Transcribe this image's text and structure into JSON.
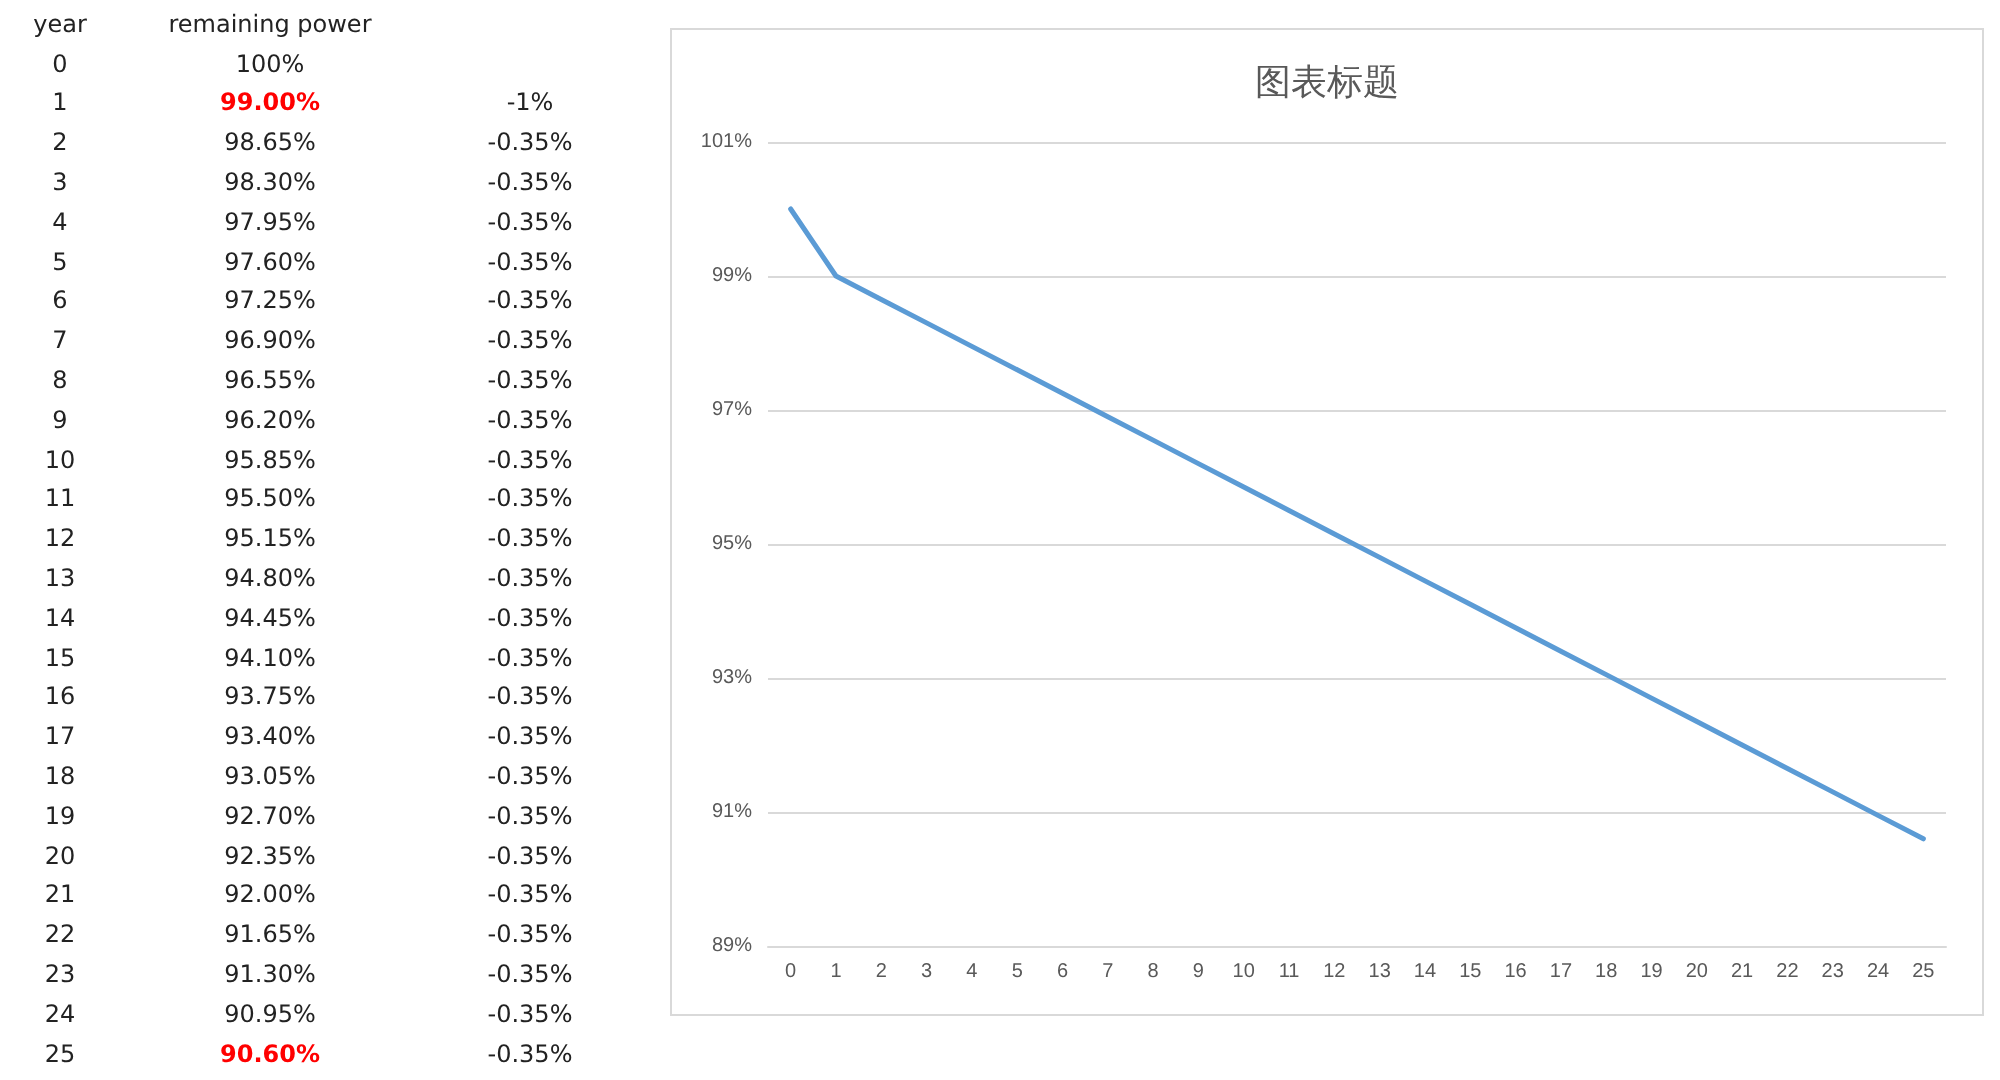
{
  "chart_data": {
    "type": "line",
    "title": "图表标题",
    "categories": [
      "0",
      "1",
      "2",
      "3",
      "4",
      "5",
      "6",
      "7",
      "8",
      "9",
      "10",
      "11",
      "12",
      "13",
      "14",
      "15",
      "16",
      "17",
      "18",
      "19",
      "20",
      "21",
      "22",
      "23",
      "24",
      "25"
    ],
    "series": [
      {
        "color": "#5b9bd5",
        "values": [
          100,
          99,
          98.65,
          98.3,
          97.95,
          97.6,
          97.25,
          96.9,
          96.55,
          96.2,
          95.85,
          95.5,
          95.15,
          94.8,
          94.45,
          94.1,
          93.75,
          93.4,
          93.05,
          92.7,
          92.35,
          92,
          91.65,
          91.3,
          90.95,
          90.6
        ]
      }
    ],
    "annotations": [
      "year",
      "remaining power",
      "100%",
      "99.00%",
      "-1%",
      "98.65%",
      "-0.35%",
      "98.30%",
      "-0.35%",
      "97.95%",
      "-0.35%",
      "97.60%",
      "-0.35%",
      "97.25%",
      "-0.35%",
      "96.90%",
      "-0.35%",
      "96.55%",
      "-0.35%",
      "96.20%",
      "-0.35%",
      "95.85%",
      "-0.35%",
      "95.50%",
      "-0.35%",
      "95.15%",
      "-0.35%",
      "94.80%",
      "-0.35%",
      "94.45%",
      "-0.35%",
      "94.10%",
      "-0.35%",
      "93.75%",
      "-0.35%",
      "93.40%",
      "-0.35%",
      "93.05%",
      "-0.35%",
      "92.70%",
      "-0.35%",
      "92.35%",
      "-0.35%",
      "92.00%",
      "-0.35%",
      "91.65%",
      "-0.35%",
      "91.30%",
      "-0.35%",
      "90.95%",
      "-0.35%",
      "90.60%",
      "-0.35%"
    ],
    "ylim": [
      89,
      101
    ],
    "yticks": [
      {
        "value": 89,
        "label": "89%"
      },
      {
        "value": 91,
        "label": "91%"
      },
      {
        "value": 93,
        "label": "93%"
      },
      {
        "value": 95,
        "label": "95%"
      },
      {
        "value": 97,
        "label": "97%"
      },
      {
        "value": 99,
        "label": "99%"
      },
      {
        "value": 101,
        "label": "101%"
      }
    ],
    "grid": "y",
    "marker": "none",
    "line_style": "solid"
  }
}
